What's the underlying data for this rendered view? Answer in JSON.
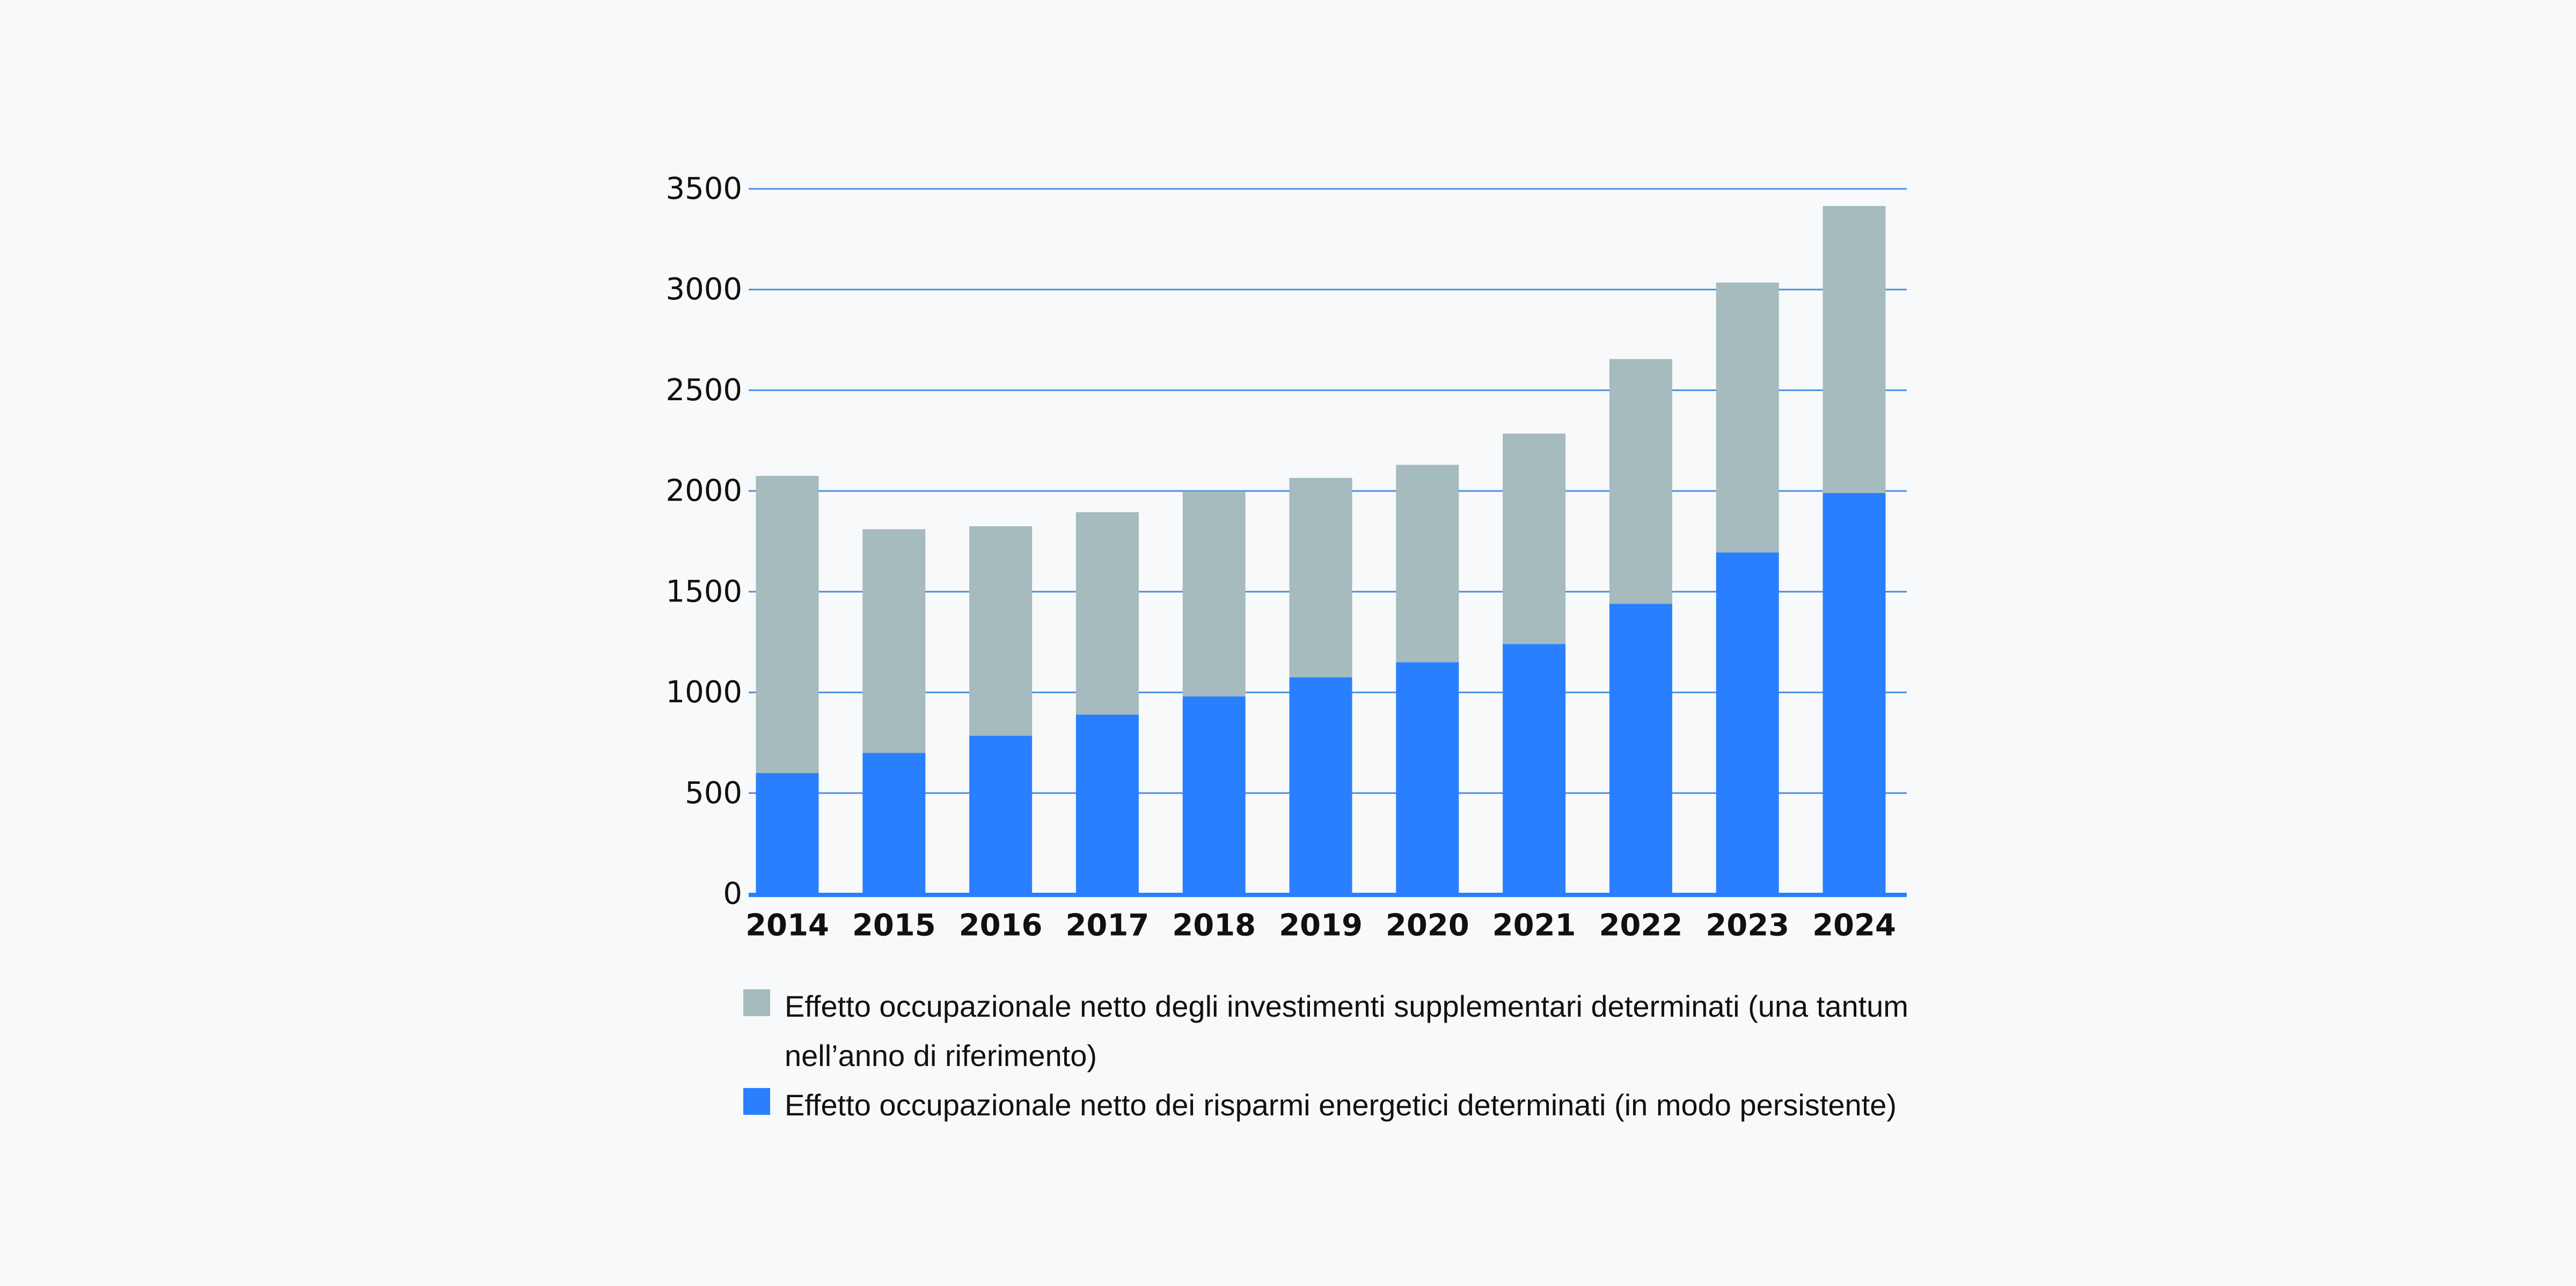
{
  "chart_data": {
    "type": "bar",
    "stacked": true,
    "categories": [
      "2014",
      "2015",
      "2016",
      "2017",
      "2018",
      "2019",
      "2020",
      "2021",
      "2022",
      "2023",
      "2024"
    ],
    "series": [
      {
        "name": "Effetto occupazionale netto dei risparmi energetici determinati (in modo persistente)",
        "color": "#2a7fff",
        "values": [
          600,
          700,
          785,
          890,
          980,
          1075,
          1150,
          1240,
          1440,
          1695,
          1990
        ]
      },
      {
        "name": "Effetto occupazionale netto degli investimenti supplementari determinati (una tantum nell’anno di riferimento)",
        "color": "#a5bbbd",
        "values": [
          1475,
          1110,
          1040,
          1005,
          1015,
          990,
          980,
          1045,
          1215,
          1340,
          1425
        ]
      }
    ],
    "yticks": [
      "0",
      "500",
      "1000",
      "1500",
      "2000",
      "2500",
      "3000",
      "3500"
    ],
    "ylim": [
      0,
      3500
    ],
    "grid": true,
    "gridColor": "#4a90e2",
    "legend": "bottom"
  }
}
